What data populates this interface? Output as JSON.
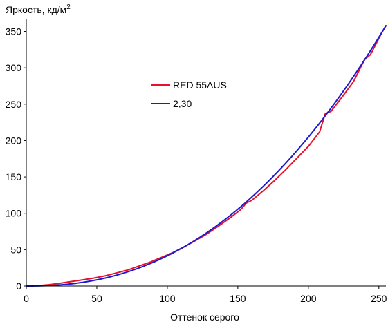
{
  "chart_data": {
    "type": "line",
    "title": "",
    "ylabel": "Яркость, кд/м",
    "ylabel_superscript": "2",
    "xlabel": "Оттенок серого",
    "xlim": [
      0,
      255
    ],
    "ylim": [
      0,
      360
    ],
    "x_ticks": [
      0,
      50,
      100,
      150,
      200,
      250
    ],
    "y_ticks": [
      0,
      50,
      100,
      150,
      200,
      250,
      300,
      350
    ],
    "grid": false,
    "legend_placement": "upper-middle",
    "series": [
      {
        "name": "RED 55AUS",
        "color": "#e8102a",
        "points": [
          [
            0,
            0
          ],
          [
            8,
            0.5
          ],
          [
            16,
            1.8
          ],
          [
            24,
            3.8
          ],
          [
            32,
            6.2
          ],
          [
            40,
            8.4
          ],
          [
            48,
            10.9
          ],
          [
            56,
            14.0
          ],
          [
            64,
            18.0
          ],
          [
            72,
            22.0
          ],
          [
            80,
            27.5
          ],
          [
            88,
            33.0
          ],
          [
            96,
            39.5
          ],
          [
            104,
            46.0
          ],
          [
            112,
            54.0
          ],
          [
            120,
            62.5
          ],
          [
            128,
            71.5
          ],
          [
            136,
            82.0
          ],
          [
            144,
            93.0
          ],
          [
            152,
            105.0
          ],
          [
            156,
            114.0
          ],
          [
            160,
            118.0
          ],
          [
            168,
            131.0
          ],
          [
            176,
            145.0
          ],
          [
            184,
            160.0
          ],
          [
            192,
            176.0
          ],
          [
            200,
            192.0
          ],
          [
            208,
            212.0
          ],
          [
            212,
            237.0
          ],
          [
            216,
            240.0
          ],
          [
            224,
            260.0
          ],
          [
            232,
            281.0
          ],
          [
            240,
            312.0
          ],
          [
            244,
            318.0
          ],
          [
            248,
            333.0
          ],
          [
            252,
            348.0
          ],
          [
            255,
            358.0
          ]
        ]
      },
      {
        "name": "2,30",
        "color": "#1a1ad2",
        "gamma": 2.3,
        "max": 358
      }
    ]
  }
}
